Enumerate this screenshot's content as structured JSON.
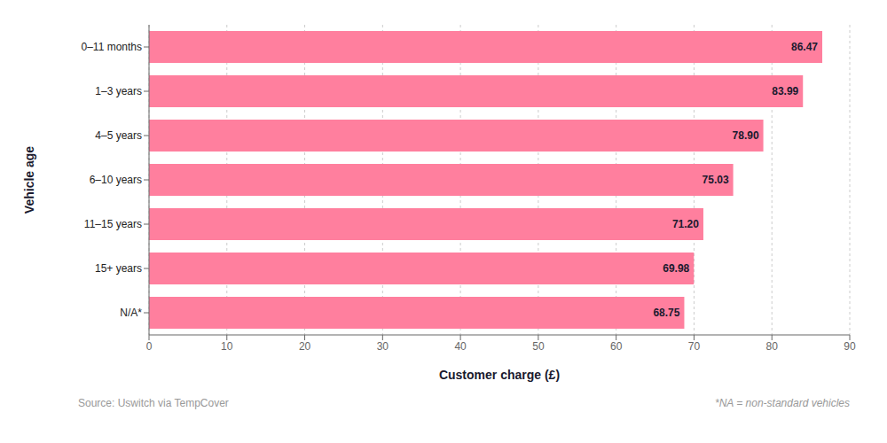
{
  "chart_data": {
    "type": "bar",
    "orientation": "horizontal",
    "categories": [
      "0–11 months",
      "1–3 years",
      "4–5 years",
      "6–10 years",
      "11–15 years",
      "15+ years",
      "N/A*"
    ],
    "values": [
      86.47,
      83.99,
      78.9,
      75.03,
      71.2,
      69.98,
      68.75
    ],
    "value_labels": [
      "86.47",
      "83.99",
      "78.90",
      "75.03",
      "71.20",
      "69.98",
      "68.75"
    ],
    "data_labels": true,
    "color": "#FF7F9E",
    "xlabel": "Customer charge (£)",
    "ylabel": "Vehicle age",
    "xlim": [
      0,
      90
    ],
    "xticks": [
      0,
      10,
      20,
      30,
      40,
      50,
      60,
      70,
      80,
      90
    ],
    "grid": true,
    "annotations": [
      "Source: Uswitch via TempCover",
      "*NA = non-standard vehicles"
    ]
  }
}
